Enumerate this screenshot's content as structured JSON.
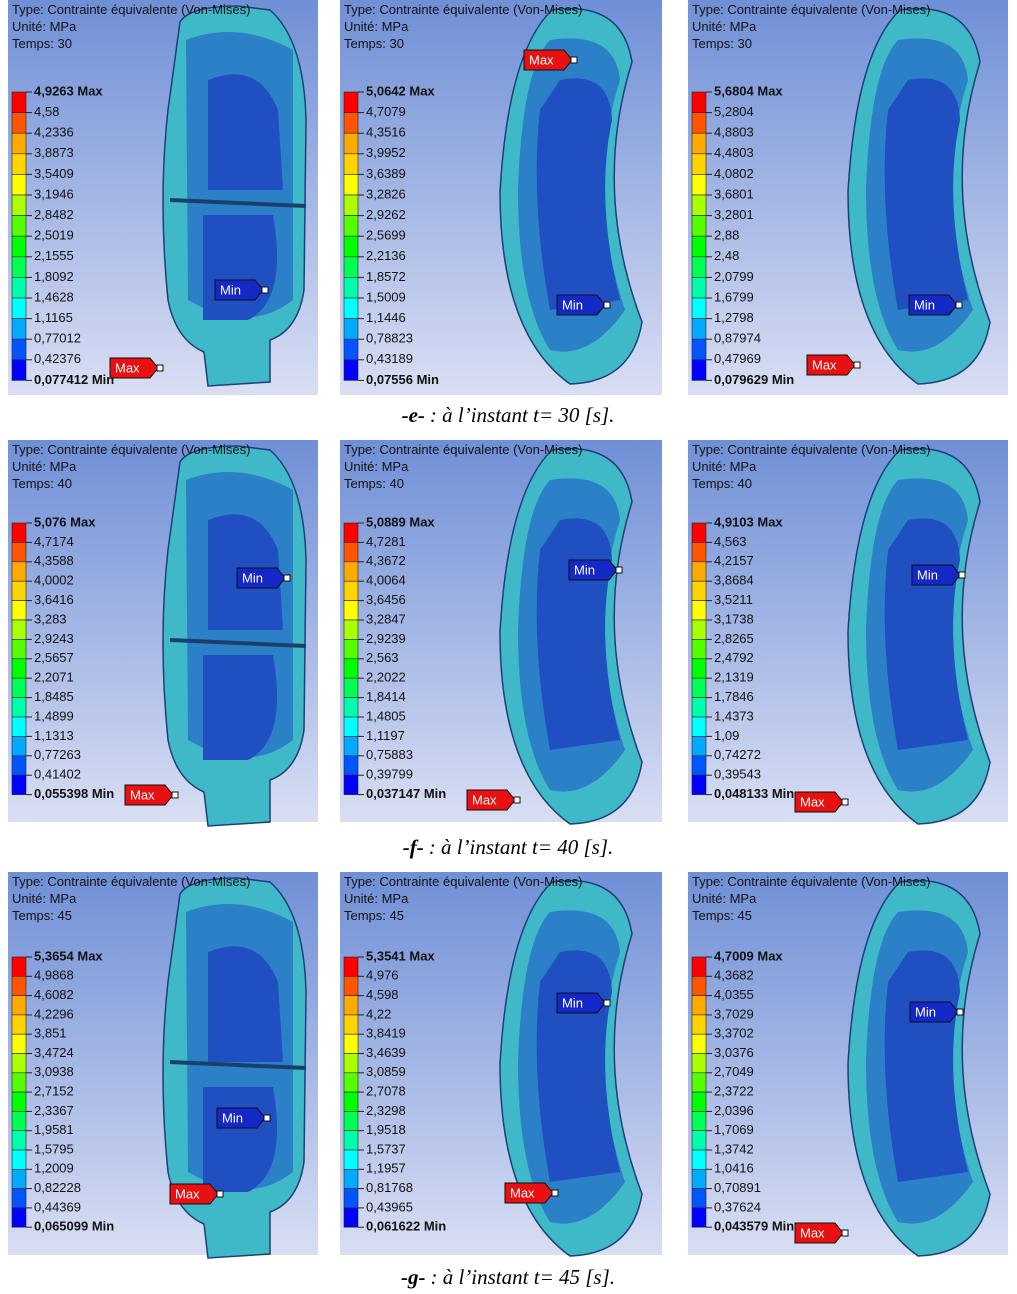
{
  "rows": [
    {
      "panels": [
        {
          "header": [
            "Type: Contrainte équivalente (Von-Mises)",
            "Unité: MPa",
            "Temps: 30"
          ],
          "legend": [
            "4,9263 Max",
            "4,58",
            "4,2336",
            "3,8873",
            "3,5409",
            "3,1946",
            "2,8482",
            "2,5019",
            "2,1555",
            "1,8092",
            "1,4628",
            "1,1165",
            "0,77012",
            "0,42376",
            "0,077412 Min"
          ],
          "max_tag": "Max",
          "min_tag": "Min"
        },
        {
          "header": [
            "Type: Contrainte équivalente (Von-Mises)",
            "Unité: MPa",
            "Temps: 30"
          ],
          "legend": [
            "5,0642 Max",
            "4,7079",
            "4,3516",
            "3,9952",
            "3,6389",
            "3,2826",
            "2,9262",
            "2,5699",
            "2,2136",
            "1,8572",
            "1,5009",
            "1,1446",
            "0,78823",
            "0,43189",
            "0,07556 Min"
          ],
          "max_tag": "Max",
          "min_tag": "Min"
        },
        {
          "header": [
            "Type: Contrainte équivalente (Von-Mises)",
            "Unité: MPa",
            "Temps: 30"
          ],
          "legend": [
            "5,6804 Max",
            "5,2804",
            "4,8803",
            "4,4803",
            "4,0802",
            "3,6801",
            "3,2801",
            "2,88",
            "2,48",
            "2,0799",
            "1,6799",
            "1,2798",
            "0,87974",
            "0,47969",
            "0,079629 Min"
          ],
          "max_tag": "Max",
          "min_tag": "Min"
        }
      ],
      "caption": {
        "label": "-e-",
        "text": ": à l’instant t= 30 [s]."
      }
    },
    {
      "panels": [
        {
          "header": [
            "Type: Contrainte équivalente (Von-Mises)",
            "Unité: MPa",
            "Temps: 40"
          ],
          "legend": [
            "5,076 Max",
            "4,7174",
            "4,3588",
            "4,0002",
            "3,6416",
            "3,283",
            "2,9243",
            "2,5657",
            "2,2071",
            "1,8485",
            "1,4899",
            "1,1313",
            "0,77263",
            "0,41402",
            "0,055398 Min"
          ],
          "max_tag": "Max",
          "min_tag": "Min"
        },
        {
          "header": [
            "Type: Contrainte équivalente (Von-Mises)",
            "Unité: MPa",
            "Temps: 40"
          ],
          "legend": [
            "5,0889 Max",
            "4,7281",
            "4,3672",
            "4,0064",
            "3,6456",
            "3,2847",
            "2,9239",
            "2,563",
            "2,2022",
            "1,8414",
            "1,4805",
            "1,1197",
            "0,75883",
            "0,39799",
            "0,037147 Min"
          ],
          "max_tag": "Max",
          "min_tag": "Min"
        },
        {
          "header": [
            "Type: Contrainte équivalente (Von-Mises)",
            "Unité: MPa",
            "Temps: 40"
          ],
          "legend": [
            "4,9103 Max",
            "4,563",
            "4,2157",
            "3,8684",
            "3,5211",
            "3,1738",
            "2,8265",
            "2,4792",
            "2,1319",
            "1,7846",
            "1,4373",
            "1,09",
            "0,74272",
            "0,39543",
            "0,048133 Min"
          ],
          "max_tag": "Max",
          "min_tag": "Min"
        }
      ],
      "caption": {
        "label": "-f-",
        "text": ": à l’instant t= 40 [s]."
      }
    },
    {
      "panels": [
        {
          "header": [
            "Type: Contrainte équivalente (Von-Mises)",
            "Unité: MPa",
            "Temps: 45"
          ],
          "legend": [
            "5,3654 Max",
            "4,9868",
            "4,6082",
            "4,2296",
            "3,851",
            "3,4724",
            "3,0938",
            "2,7152",
            "2,3367",
            "1,9581",
            "1,5795",
            "1,2009",
            "0,82228",
            "0,44369",
            "0,065099 Min"
          ],
          "max_tag": "Max",
          "min_tag": "Min"
        },
        {
          "header": [
            "Type: Contrainte équivalente (Von-Mises)",
            "Unité: MPa",
            "Temps: 45"
          ],
          "legend": [
            "5,3541 Max",
            "4,976",
            "4,598",
            "4,22",
            "3,8419",
            "3,4639",
            "3,0859",
            "2,7078",
            "2,3298",
            "1,9518",
            "1,5737",
            "1,1957",
            "0,81768",
            "0,43965",
            "0,061622 Min"
          ],
          "max_tag": "Max",
          "min_tag": "Min"
        },
        {
          "header": [
            "Type: Contrainte équivalente (Von-Mises)",
            "Unité: MPa",
            "Temps: 45"
          ],
          "legend": [
            "4,7009 Max",
            "4,3682",
            "4,0355",
            "3,7029",
            "3,3702",
            "3,0376",
            "2,7049",
            "2,3722",
            "2,0396",
            "1,7069",
            "1,3742",
            "1,0416",
            "0,70891",
            "0,37624",
            "0,043579 Min"
          ],
          "max_tag": "Max",
          "min_tag": "Min"
        }
      ],
      "caption": {
        "label": "-g-",
        "text": ": à l’instant t= 45 [s]."
      }
    }
  ]
}
